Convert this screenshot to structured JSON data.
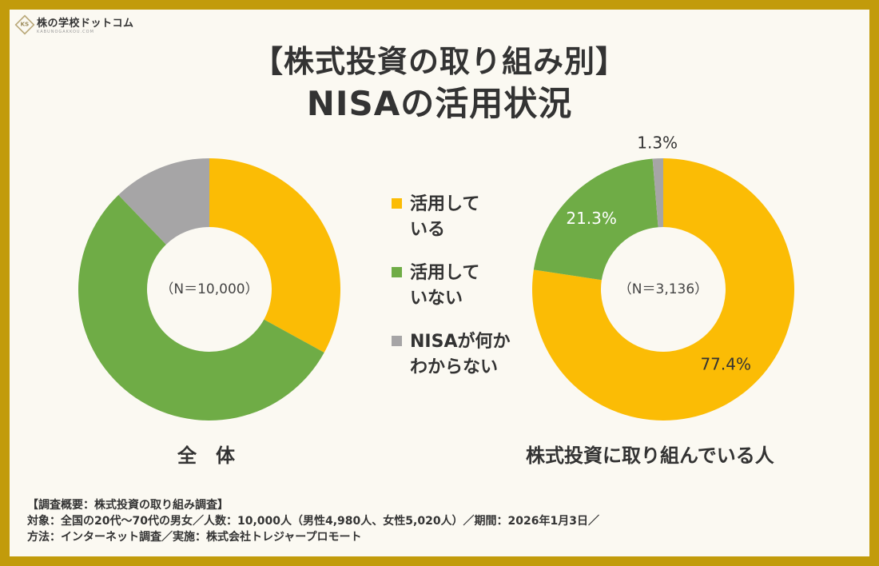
{
  "logo": {
    "mark": "KS",
    "name": "株の学校ドットコム",
    "url": "KABUNOGAKKOU.COM"
  },
  "title_line1": "【株式投資の取り組み別】",
  "title_line2": "NISAの活用状況",
  "colors": {
    "uses": "#fbbc05",
    "not_uses": "#6fac46",
    "unknown": "#a6a5a6",
    "background": "#c29b0b"
  },
  "legend": [
    {
      "label": "活用して\nいる",
      "color": "#fbbc05"
    },
    {
      "label": "活用して\nいない",
      "color": "#6fac46"
    },
    {
      "label": "NISAが何か\nわからない",
      "color": "#a6a5a6"
    }
  ],
  "chart_data": [
    {
      "type": "pie",
      "variant": "donut",
      "categories": [
        "活用している",
        "活用していない",
        "NISAが何かわからない"
      ],
      "values": [
        33.0,
        54.8,
        12.2
      ],
      "n_label": "（N＝10,000）",
      "caption": "全　体"
    },
    {
      "type": "pie",
      "variant": "donut",
      "categories": [
        "活用している",
        "活用していない",
        "NISAが何かわからない"
      ],
      "values": [
        77.4,
        21.3,
        1.3
      ],
      "value_labels": [
        "77.4%",
        "21.3%",
        "1.3%"
      ],
      "n_label": "（N＝3,136）",
      "caption": "株式投資に取り組んでいる人"
    }
  ],
  "notes": [
    "【調査概要：株式投資の取り組み調査】",
    "対象：全国の20代～70代の男女／人数：10,000人（男性4,980人、女性5,020人）／期間：2026年1月3日／",
    "方法：インターネット調査／実施：株式会社トレジャープロモート"
  ]
}
